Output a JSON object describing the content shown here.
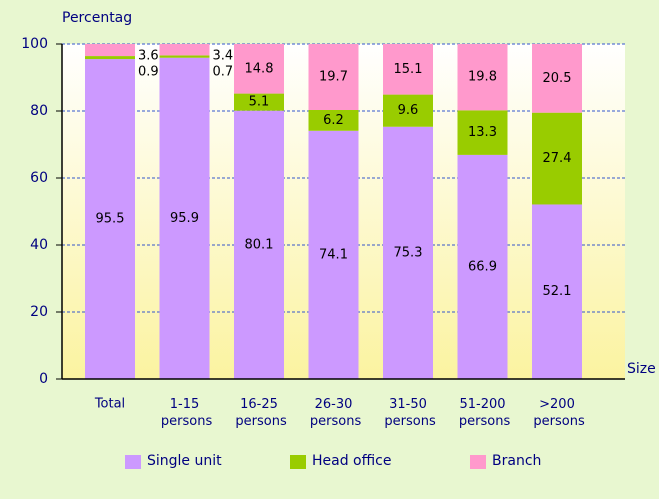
{
  "chart_data": {
    "type": "stacked_bar",
    "y_axis_label": "Percentag",
    "x_axis_label": "Size",
    "categories": [
      "Total",
      "1-15 persons",
      "16-25 persons",
      "26-30 persons",
      "31-50 persons",
      "51-200 persons",
      ">200 persons"
    ],
    "series": [
      {
        "name": "Single unit",
        "color": "#cc99ff",
        "values": [
          95.5,
          95.9,
          80.1,
          74.1,
          75.3,
          66.9,
          52.1
        ]
      },
      {
        "name": "Head office",
        "color": "#99cc00",
        "values": [
          0.9,
          0.7,
          5.1,
          6.2,
          9.6,
          13.3,
          27.4
        ]
      },
      {
        "name": "Branch",
        "color": "#ff99cc",
        "values": [
          3.6,
          3.4,
          14.8,
          19.7,
          15.1,
          19.8,
          20.5
        ]
      }
    ],
    "ylim": [
      0,
      100
    ],
    "yticks": [
      0,
      20,
      40,
      60,
      80,
      100
    ],
    "grid": true
  }
}
